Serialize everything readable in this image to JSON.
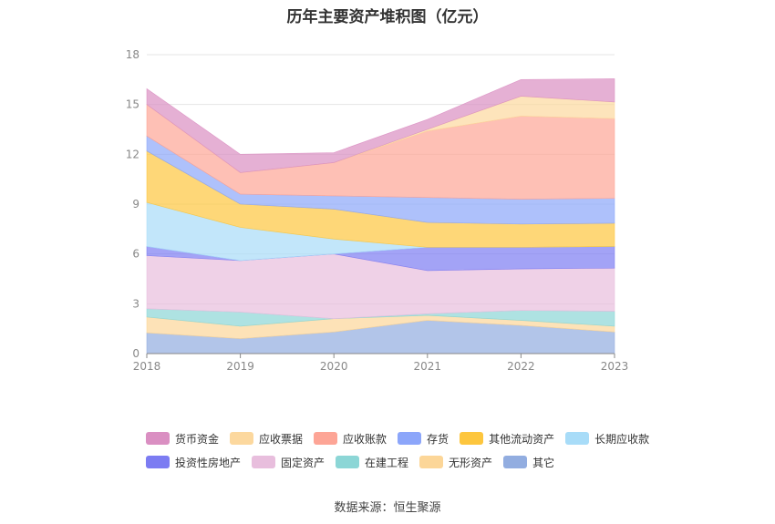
{
  "title": "历年主要资产堆积图（亿元）",
  "source": "数据来源：恒生聚源",
  "chart_data": {
    "type": "area",
    "stacked": true,
    "categories": [
      "2018",
      "2019",
      "2020",
      "2021",
      "2022",
      "2023"
    ],
    "ylim": [
      0,
      18
    ],
    "yticks": [
      0,
      3,
      6,
      9,
      12,
      15,
      18
    ],
    "grid": true,
    "legend_position": "bottom",
    "series": [
      {
        "name": "其它",
        "color": "#92ade0",
        "values": [
          1.25,
          0.9,
          1.3,
          2.0,
          1.7,
          1.3
        ]
      },
      {
        "name": "无形资产",
        "color": "#fcd698",
        "values": [
          0.95,
          0.75,
          0.8,
          0.3,
          0.3,
          0.35
        ]
      },
      {
        "name": "在建工程",
        "color": "#8cd6d6",
        "values": [
          0.5,
          0.85,
          0.0,
          0.1,
          0.6,
          0.9
        ]
      },
      {
        "name": "固定资产",
        "color": "#e8bedd",
        "values": [
          3.2,
          3.1,
          3.9,
          2.6,
          2.5,
          2.6
        ]
      },
      {
        "name": "投资性房地产",
        "color": "#7c7cf2",
        "values": [
          0.55,
          0.0,
          0.0,
          1.4,
          1.3,
          1.3
        ]
      },
      {
        "name": "长期应收款",
        "color": "#a8dcf8",
        "values": [
          2.65,
          2.0,
          0.9,
          0.0,
          0.0,
          0.0
        ]
      },
      {
        "name": "其他流动资产",
        "color": "#fdc63e",
        "values": [
          3.1,
          1.4,
          1.8,
          1.5,
          1.4,
          1.4
        ]
      },
      {
        "name": "存货",
        "color": "#8ca6fa",
        "values": [
          0.9,
          0.6,
          0.8,
          1.5,
          1.5,
          1.5
        ]
      },
      {
        "name": "应收账款",
        "color": "#fda596",
        "values": [
          1.9,
          1.3,
          2.0,
          4.0,
          5.0,
          4.8
        ]
      },
      {
        "name": "应收票据",
        "color": "#fcd89e",
        "values": [
          0.0,
          0.0,
          0.0,
          0.1,
          1.2,
          1.0
        ]
      },
      {
        "name": "货币资金",
        "color": "#da8fc2",
        "values": [
          0.95,
          1.1,
          0.6,
          0.6,
          1.0,
          1.4
        ]
      }
    ],
    "legend_order": [
      "货币资金",
      "应收票据",
      "应收账款",
      "存货",
      "其他流动资产",
      "长期应收款",
      "投资性房地产",
      "固定资产",
      "在建工程",
      "无形资产",
      "其它"
    ]
  }
}
